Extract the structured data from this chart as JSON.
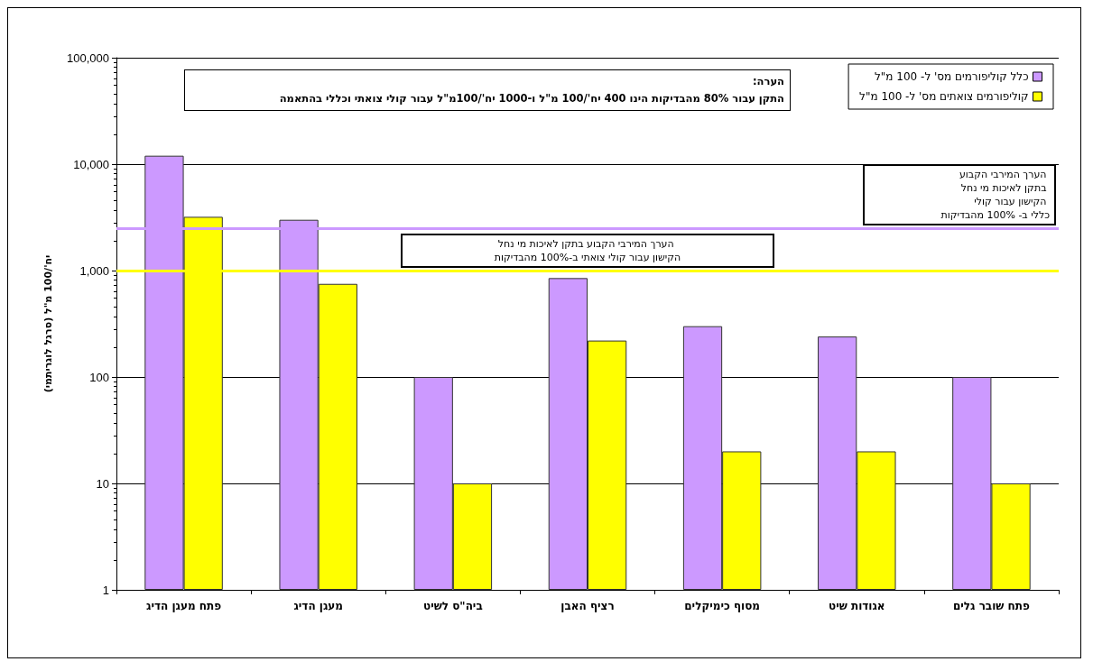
{
  "chart_data": {
    "type": "bar",
    "ylabel": "יח'/100 מ\"ל (סרגל לוגריתמי)",
    "categories": [
      "פתח מעגן הדיג",
      "מעגן הדיג",
      "ביה\"ס לשיט",
      "רציף האבן",
      "מסוף כימיקלים",
      "אגודות שיט",
      "פתח שובר גלים"
    ],
    "series": [
      {
        "name": "כלל קוליפורמים מס' ל- 100 מ\"ל",
        "color": "#cc99ff",
        "values": [
          12000,
          3000,
          100,
          850,
          300,
          240,
          100
        ]
      },
      {
        "name": "קוליפורמים צואתים מס' ל- 100 מ\"ל",
        "color": "#ffff00",
        "values": [
          3200,
          750,
          10,
          220,
          20,
          20,
          10
        ]
      }
    ],
    "log": true,
    "ylim": [
      1,
      100000
    ],
    "yticks": [
      1,
      10,
      100,
      {
        "value": 1000,
        "label": "1,000"
      },
      {
        "value": 10000,
        "label": "10,000"
      },
      {
        "value": 100000,
        "label": "100,000"
      }
    ],
    "grid": "y",
    "legend": "top right",
    "ref_lines": [
      {
        "axis": "y",
        "value": 2500,
        "color": "#cc99ff",
        "label": "הערך המירבי הקבוע בתקן לאיכות מי נחל הקישון עבור קולי כללי ב- 100% מהבדיקות"
      },
      {
        "axis": "y",
        "value": 1000,
        "color": "#ffff00",
        "label": "הערך המירבי הקבוע בתקן לאיכות מי נחל הקישון עבור קולי צואתי ב-100% מהבדיקות"
      }
    ],
    "annotations": [
      "הערה:",
      "התקן עבור 80% מהבדיקות הינו 400 יח'/100 מ\"ל ו-1000 יח'/100מ\"ל  עבור קולי צואתי וכללי בהתאמה"
    ]
  }
}
